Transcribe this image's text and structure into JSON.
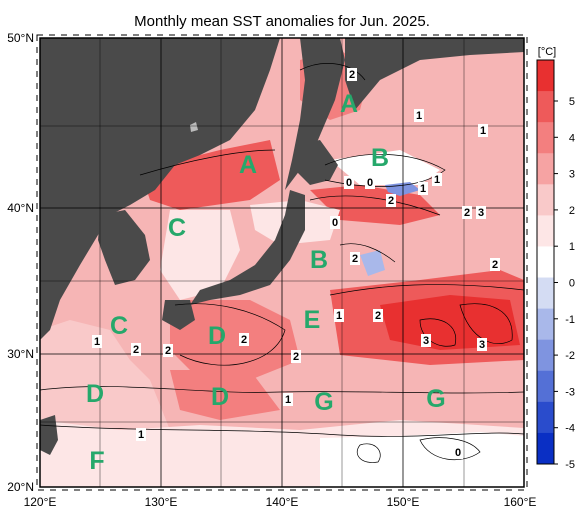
{
  "title": "Monthly mean SST anomalies for Jun. 2025.",
  "axes": {
    "lat_ticks": [
      "50°N",
      "40°N",
      "30°N",
      "20°N"
    ],
    "lon_ticks": [
      "120°E",
      "130°E",
      "140°E",
      "150°E",
      "160°E"
    ]
  },
  "colorbar": {
    "unit": "[°C]",
    "ticks": [
      "5",
      "4",
      "3",
      "2",
      "1",
      "0",
      "-1",
      "-2",
      "-3",
      "-4",
      "-5"
    ],
    "colors": [
      "#e83030",
      "#ee5a5a",
      "#f37f7f",
      "#f6a3a3",
      "#f9c9c9",
      "#fde6e6",
      "#ffffff",
      "#d4dcf3",
      "#a9b8ea",
      "#7f94e0",
      "#5470d6",
      "#2a4ccc",
      "#0a2fc4"
    ]
  },
  "region_labels": [
    "A",
    "A",
    "B",
    "B",
    "C",
    "C",
    "D",
    "D",
    "D",
    "E",
    "F",
    "G",
    "G"
  ],
  "contour_labels": [
    "2",
    "1",
    "1",
    "1",
    "0",
    "0",
    "1",
    "2",
    "2",
    "3",
    "0",
    "2",
    "2",
    "1",
    "2",
    "2",
    "2",
    "3",
    "3",
    "2",
    "2",
    "1",
    "1",
    "1",
    "0"
  ],
  "colors": {
    "land": "#4a4a4a",
    "sea_base": "#f6b5b5",
    "accent_region_label": "#26a86b"
  }
}
